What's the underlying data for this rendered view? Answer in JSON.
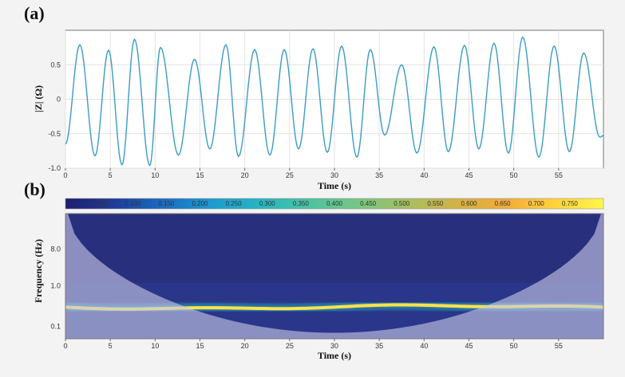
{
  "panels": {
    "a_label": "(a)",
    "b_label": "(b)"
  },
  "colors": {
    "line": "#3a9cc4",
    "background": "#f3f3f3",
    "scalogram_base": "#28307e",
    "ridge": "#ffe24a",
    "coi_overlay": "#c8c8e6"
  },
  "chart_data": [
    {
      "type": "line",
      "panel": "a",
      "xlabel": "Time (s)",
      "ylabel": "|Z| (Ω)",
      "xlim": [
        0,
        60
      ],
      "ylim": [
        -1.0,
        1.0
      ],
      "x_ticks": [
        0,
        5,
        10,
        15,
        20,
        25,
        30,
        35,
        40,
        45,
        50,
        55
      ],
      "y_ticks": [
        {
          "value": 0.5,
          "label": "0.5"
        },
        {
          "value": 0,
          "label": "0"
        },
        {
          "value": -0.5,
          "label": "-0.5"
        },
        {
          "value": -1.0,
          "label": "-1.0"
        }
      ],
      "grid": true,
      "series": [
        {
          "peaks": [
            {
              "t": 1.6,
              "v": 0.79
            },
            {
              "t": 4.8,
              "v": 0.71
            },
            {
              "t": 7.7,
              "v": 0.87
            },
            {
              "t": 10.6,
              "v": 0.75
            },
            {
              "t": 14.4,
              "v": 0.58
            },
            {
              "t": 17.9,
              "v": 0.79
            },
            {
              "t": 21.1,
              "v": 0.72
            },
            {
              "t": 24.4,
              "v": 0.72
            },
            {
              "t": 27.6,
              "v": 0.73
            },
            {
              "t": 30.8,
              "v": 0.77
            },
            {
              "t": 34.0,
              "v": 0.72
            },
            {
              "t": 37.5,
              "v": 0.5
            },
            {
              "t": 41.1,
              "v": 0.76
            },
            {
              "t": 44.5,
              "v": 0.78
            },
            {
              "t": 47.8,
              "v": 0.81
            },
            {
              "t": 51.0,
              "v": 0.9
            },
            {
              "t": 54.5,
              "v": 0.77
            },
            {
              "t": 57.8,
              "v": 0.67
            }
          ],
          "troughs": [
            {
              "t": 0.0,
              "v": -0.65
            },
            {
              "t": 3.3,
              "v": -0.82
            },
            {
              "t": 6.3,
              "v": -0.95
            },
            {
              "t": 9.4,
              "v": -0.96
            },
            {
              "t": 12.6,
              "v": -0.81
            },
            {
              "t": 16.1,
              "v": -0.72
            },
            {
              "t": 19.3,
              "v": -0.83
            },
            {
              "t": 22.8,
              "v": -0.81
            },
            {
              "t": 26.0,
              "v": -0.72
            },
            {
              "t": 29.2,
              "v": -0.77
            },
            {
              "t": 32.5,
              "v": -0.84
            },
            {
              "t": 35.6,
              "v": -0.52
            },
            {
              "t": 39.2,
              "v": -0.78
            },
            {
              "t": 42.7,
              "v": -0.76
            },
            {
              "t": 46.1,
              "v": -0.72
            },
            {
              "t": 49.4,
              "v": -0.78
            },
            {
              "t": 52.8,
              "v": -0.84
            },
            {
              "t": 56.2,
              "v": -0.76
            },
            {
              "t": 59.6,
              "v": -0.55
            }
          ]
        }
      ]
    },
    {
      "type": "heatmap",
      "panel": "b",
      "xlabel": "Time (s)",
      "ylabel": "Frequency (Hz)",
      "xlim": [
        0,
        60
      ],
      "x_ticks": [
        0,
        5,
        10,
        15,
        20,
        25,
        30,
        35,
        40,
        45,
        50,
        55
      ],
      "y_ticks": [
        {
          "value": 8.0,
          "label": "8.0"
        },
        {
          "value": 1.0,
          "label": "1.0"
        },
        {
          "value": 0.1,
          "label": "0.1"
        }
      ],
      "y_scale": "log",
      "ylim": [
        0.05,
        60
      ],
      "dominant_frequency_hz": 0.3,
      "colorbar": {
        "range": [
          0.0,
          0.8
        ],
        "ticks": [
          "0.050",
          "0.100",
          "0.150",
          "0.200",
          "0.250",
          "0.300",
          "0.350",
          "0.400",
          "0.450",
          "0.500",
          "0.550",
          "0.600",
          "0.650",
          "0.700",
          "0.750"
        ],
        "stops": [
          "#1f1f6e",
          "#1f3c9a",
          "#1b6cc2",
          "#1f9bd0",
          "#28b6c0",
          "#4cc3a0",
          "#78c684",
          "#a6bf60",
          "#d3b246",
          "#f2ab3a",
          "#ffd23c",
          "#fff64a"
        ]
      },
      "cone_of_influence_min_hz": 0.07
    }
  ]
}
